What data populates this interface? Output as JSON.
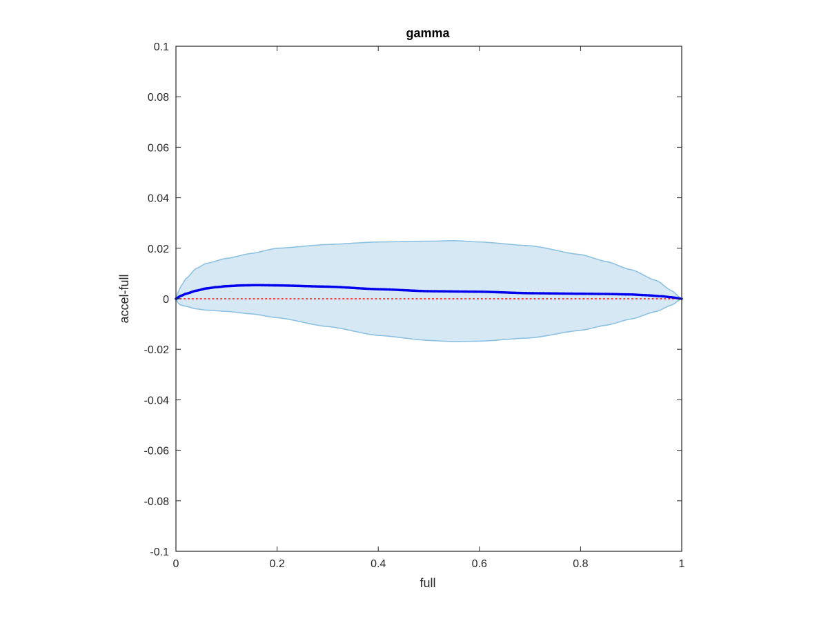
{
  "chart_data": {
    "type": "line",
    "title": "gamma",
    "xlabel": "full",
    "ylabel": "accel-full",
    "xlim": [
      0,
      1
    ],
    "ylim": [
      -0.1,
      0.1
    ],
    "xticks": [
      0,
      0.2,
      0.4,
      0.6,
      0.8,
      1
    ],
    "xtick_labels": [
      "0",
      "0.2",
      "0.4",
      "0.6",
      "0.8",
      "1"
    ],
    "yticks": [
      0.1,
      0.08,
      0.06,
      0.04,
      0.02,
      0,
      -0.02,
      -0.04,
      -0.06,
      -0.08,
      -0.1
    ],
    "ytick_labels": [
      "0.1",
      "0.08",
      "0.06",
      "0.04",
      "0.02",
      "0",
      "-0.02",
      "-0.04",
      "-0.06",
      "-0.08",
      "-0.1"
    ],
    "grid": false,
    "colors": {
      "band_fill": "#d6e8f4",
      "band_edge": "#8cc1e0",
      "mean": "#0000ee",
      "zero_line": "#ff0000",
      "axes": "#262626"
    },
    "band": {
      "x": [
        0,
        0.005,
        0.01,
        0.02,
        0.04,
        0.06,
        0.1,
        0.15,
        0.2,
        0.3,
        0.4,
        0.5,
        0.55,
        0.6,
        0.7,
        0.8,
        0.85,
        0.9,
        0.95,
        0.98,
        1.0
      ],
      "upper": [
        0,
        0.003,
        0.005,
        0.008,
        0.012,
        0.014,
        0.016,
        0.018,
        0.02,
        0.0215,
        0.0225,
        0.0228,
        0.023,
        0.0225,
        0.021,
        0.0175,
        0.0148,
        0.0115,
        0.0072,
        0.0032,
        0
      ],
      "lower": [
        0,
        -0.002,
        -0.0025,
        -0.003,
        -0.004,
        -0.0045,
        -0.005,
        -0.006,
        -0.0075,
        -0.011,
        -0.0145,
        -0.0165,
        -0.017,
        -0.0168,
        -0.0155,
        -0.0125,
        -0.0105,
        -0.008,
        -0.005,
        -0.0025,
        0
      ]
    },
    "series": [
      {
        "x": [
          0,
          0.01,
          0.02,
          0.04,
          0.06,
          0.08,
          0.1,
          0.13,
          0.16,
          0.2,
          0.3,
          0.4,
          0.5,
          0.6,
          0.7,
          0.8,
          0.85,
          0.9,
          0.93,
          0.96,
          0.98,
          1.0
        ],
        "y": [
          0,
          0.0012,
          0.002,
          0.0032,
          0.0041,
          0.0046,
          0.005,
          0.0053,
          0.0054,
          0.0053,
          0.0048,
          0.0038,
          0.003,
          0.0028,
          0.0022,
          0.002,
          0.0019,
          0.0017,
          0.0014,
          0.001,
          0.0006,
          0
        ]
      }
    ],
    "reference_line": {
      "y": 0
    }
  }
}
